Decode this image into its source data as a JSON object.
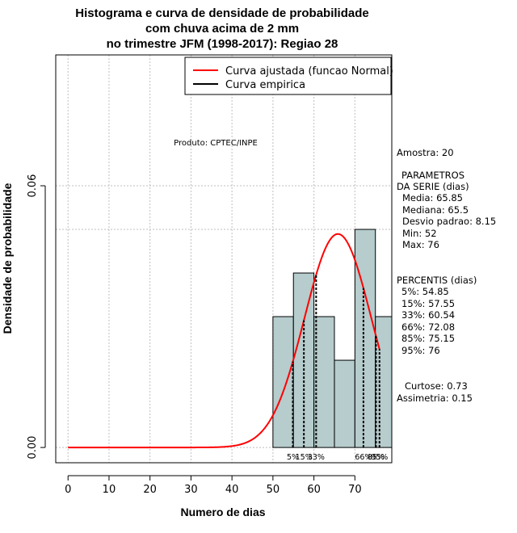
{
  "chart_data": {
    "type": "histogram",
    "title_lines": [
      "Histograma e curva de densidade de probabilidade",
      "com chuva acima de 2 mm",
      "no trimestre JFM (1998-2017): Regiao 28"
    ],
    "xlabel": "Numero de dias",
    "ylabel": "Densidade de probabilidade",
    "xlim": [
      -3,
      79
    ],
    "ylim": [
      -0.0035,
      0.09
    ],
    "x_ticks": [
      0,
      10,
      20,
      30,
      40,
      50,
      60,
      70
    ],
    "x_tick_labels": [
      "0",
      "10",
      "20",
      "30",
      "40",
      "50",
      "60",
      "70"
    ],
    "y_ticks": [
      0.0,
      0.06
    ],
    "y_tick_labels": [
      "0.00",
      "0.06"
    ],
    "grid": true,
    "bins": [
      {
        "start": 50,
        "end": 55,
        "density": 0.03
      },
      {
        "start": 55,
        "end": 60,
        "density": 0.04
      },
      {
        "start": 60,
        "end": 65,
        "density": 0.03
      },
      {
        "start": 65,
        "end": 70,
        "density": 0.02
      },
      {
        "start": 70,
        "end": 75,
        "density": 0.05
      },
      {
        "start": 75,
        "end": 80,
        "density": 0.03
      }
    ],
    "normal_curve": {
      "mean": 65.85,
      "sd": 8.15,
      "x_from": 0,
      "x_to": 76,
      "color": "#ff0000"
    },
    "bar_color": "#b6cccd",
    "percentile_lines": [
      {
        "label": "5%",
        "x": 54.85
      },
      {
        "label": "15%",
        "x": 57.55
      },
      {
        "label": "33%",
        "x": 60.54
      },
      {
        "label": "66%",
        "x": 72.08
      },
      {
        "label": "85%",
        "x": 75.15
      },
      {
        "label": "95%",
        "x": 76
      }
    ],
    "legend": {
      "placement": "top-right",
      "entries": [
        {
          "label": "Curva ajustada (funcao Normal)",
          "color": "#ff0000"
        },
        {
          "label": "Curva empirica",
          "color": "#000000"
        }
      ]
    },
    "annotation": "Produto: CPTEC/INPE"
  },
  "side_panel": {
    "amostra": "Amostra: 20",
    "parametros_title": [
      "PARAMETROS",
      "DA SERIE (dias)"
    ],
    "parametros": [
      "Media: 65.85",
      "Mediana: 65.5",
      "Desvio padrao: 8.15",
      "Min: 52",
      "Max: 76"
    ],
    "percentis_title": "PERCENTIS (dias)",
    "percentis": [
      "5%: 54.85",
      "15%: 57.55",
      "33%: 60.54",
      "66%: 72.08",
      "85%: 75.15",
      "95%: 76"
    ],
    "curtose": "Curtose: 0.73",
    "assimetria": "Assimetria: 0.15"
  }
}
